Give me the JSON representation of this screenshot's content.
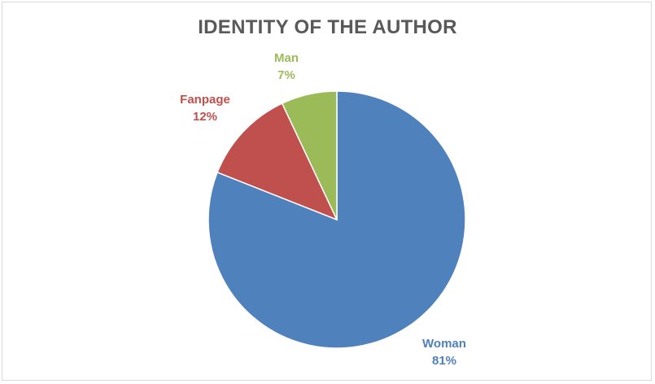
{
  "chart_data": {
    "type": "pie",
    "title": "IDENTITY OF THE AUTHOR",
    "slices": [
      {
        "label": "Woman",
        "value": 81,
        "value_label": "81%",
        "color": "#4f81bd",
        "text_color": "#4f81bd"
      },
      {
        "label": "Fanpage",
        "value": 12,
        "value_label": "12%",
        "color": "#c0504d",
        "text_color": "#c0504d"
      },
      {
        "label": "Man",
        "value": 7,
        "value_label": "7%",
        "color": "#9bbb59",
        "text_color": "#9bbb59"
      }
    ],
    "start_angle": "12 o'clock",
    "direction": "clockwise",
    "legend": "none",
    "data_labels": "outside"
  }
}
